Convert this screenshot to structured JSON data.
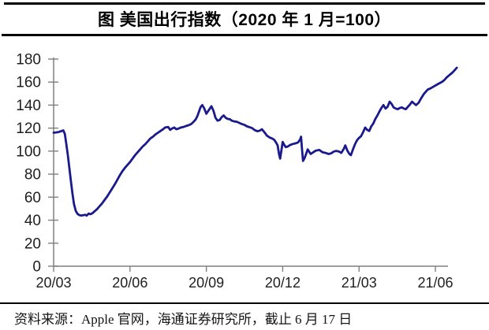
{
  "header": {
    "title": "图 美国出行指数（2020 年 1 月=100）"
  },
  "footer": {
    "source": "资料来源：Apple 官网，海通证券研究所，截止 6 月 17 日"
  },
  "colors": {
    "line": "#1a1a8c",
    "axis": "#808080",
    "tick_label": "#1f1f1f",
    "rule": "#000000",
    "background": "#ffffff"
  },
  "chart_data": {
    "type": "line",
    "title": "美国出行指数（2020年1月=100）",
    "xlabel": "",
    "ylabel": "",
    "x_axis": {
      "unit": "months since 2020-03",
      "tick_positions": [
        0,
        3,
        6,
        9,
        12,
        15
      ],
      "tick_labels": [
        "20/03",
        "20/06",
        "20/09",
        "20/12",
        "21/03",
        "21/06"
      ],
      "range": [
        0,
        15.95
      ]
    },
    "y_axis": {
      "ticks": [
        0,
        20,
        40,
        60,
        80,
        100,
        120,
        140,
        160,
        180
      ],
      "range": [
        0,
        180
      ]
    },
    "grid": "off",
    "legend": "none",
    "series": [
      {
        "name": "美国出行指数",
        "points": [
          [
            0,
            116
          ],
          [
            0.1,
            116.3
          ],
          [
            0.2,
            116.6
          ],
          [
            0.3,
            117.4
          ],
          [
            0.38,
            118
          ],
          [
            0.44,
            115
          ],
          [
            0.5,
            106
          ],
          [
            0.56,
            96
          ],
          [
            0.62,
            85
          ],
          [
            0.68,
            74
          ],
          [
            0.74,
            63
          ],
          [
            0.8,
            54
          ],
          [
            0.87,
            48
          ],
          [
            0.94,
            45.5
          ],
          [
            1.0,
            44.5
          ],
          [
            1.08,
            44
          ],
          [
            1.16,
            44.3
          ],
          [
            1.24,
            44.6
          ],
          [
            1.3,
            44
          ],
          [
            1.38,
            45.8
          ],
          [
            1.44,
            45.2
          ],
          [
            1.52,
            46
          ],
          [
            1.6,
            47.5
          ],
          [
            1.7,
            49.5
          ],
          [
            1.8,
            52
          ],
          [
            1.9,
            54.5
          ],
          [
            2.0,
            57.5
          ],
          [
            2.1,
            60.5
          ],
          [
            2.2,
            64
          ],
          [
            2.3,
            67.5
          ],
          [
            2.4,
            71
          ],
          [
            2.5,
            75
          ],
          [
            2.6,
            79
          ],
          [
            2.7,
            82.5
          ],
          [
            2.8,
            85.5
          ],
          [
            2.9,
            88
          ],
          [
            3.0,
            90.5
          ],
          [
            3.1,
            93.5
          ],
          [
            3.2,
            96.5
          ],
          [
            3.3,
            99
          ],
          [
            3.4,
            101.5
          ],
          [
            3.5,
            104
          ],
          [
            3.6,
            106
          ],
          [
            3.7,
            108.5
          ],
          [
            3.8,
            111
          ],
          [
            3.9,
            112.5
          ],
          [
            4.0,
            114.5
          ],
          [
            4.1,
            116
          ],
          [
            4.2,
            117.5
          ],
          [
            4.3,
            119
          ],
          [
            4.38,
            120.5
          ],
          [
            4.5,
            121
          ],
          [
            4.58,
            118.5
          ],
          [
            4.66,
            119.8
          ],
          [
            4.74,
            120.5
          ],
          [
            4.82,
            119
          ],
          [
            4.9,
            119.6
          ],
          [
            5.0,
            120.5
          ],
          [
            5.1,
            121
          ],
          [
            5.2,
            121.8
          ],
          [
            5.3,
            122.5
          ],
          [
            5.4,
            123.5
          ],
          [
            5.5,
            125.5
          ],
          [
            5.58,
            127.5
          ],
          [
            5.65,
            130.5
          ],
          [
            5.72,
            135
          ],
          [
            5.78,
            138.5
          ],
          [
            5.84,
            140
          ],
          [
            5.92,
            137
          ],
          [
            6.0,
            132.5
          ],
          [
            6.06,
            134.5
          ],
          [
            6.14,
            137
          ],
          [
            6.2,
            139
          ],
          [
            6.28,
            135
          ],
          [
            6.36,
            129
          ],
          [
            6.44,
            126.5
          ],
          [
            6.52,
            127
          ],
          [
            6.6,
            129.5
          ],
          [
            6.68,
            131
          ],
          [
            6.76,
            129
          ],
          [
            6.84,
            128
          ],
          [
            6.92,
            127.8
          ],
          [
            7.0,
            126.5
          ],
          [
            7.1,
            125.8
          ],
          [
            7.2,
            125.5
          ],
          [
            7.3,
            124.5
          ],
          [
            7.4,
            123.5
          ],
          [
            7.5,
            122.8
          ],
          [
            7.6,
            121.5
          ],
          [
            7.7,
            120.8
          ],
          [
            7.8,
            120
          ],
          [
            7.9,
            118.3
          ],
          [
            8.0,
            117.3
          ],
          [
            8.1,
            117.8
          ],
          [
            8.18,
            119
          ],
          [
            8.28,
            116.5
          ],
          [
            8.38,
            113.5
          ],
          [
            8.48,
            112
          ],
          [
            8.58,
            111
          ],
          [
            8.66,
            110
          ],
          [
            8.74,
            107.5
          ],
          [
            8.8,
            105
          ],
          [
            8.86,
            97
          ],
          [
            8.9,
            93.5
          ],
          [
            8.96,
            102
          ],
          [
            9.0,
            108
          ],
          [
            9.06,
            105.5
          ],
          [
            9.12,
            103.5
          ],
          [
            9.2,
            104
          ],
          [
            9.3,
            105.5
          ],
          [
            9.4,
            106.2
          ],
          [
            9.5,
            106.8
          ],
          [
            9.6,
            107.5
          ],
          [
            9.68,
            110
          ],
          [
            9.72,
            112.5
          ],
          [
            9.76,
            101
          ],
          [
            9.8,
            91.5
          ],
          [
            9.86,
            94
          ],
          [
            9.92,
            97.5
          ],
          [
            9.98,
            101.5
          ],
          [
            10.04,
            99.5
          ],
          [
            10.1,
            97.5
          ],
          [
            10.2,
            99
          ],
          [
            10.3,
            100.5
          ],
          [
            10.44,
            101
          ],
          [
            10.56,
            99
          ],
          [
            10.68,
            98.5
          ],
          [
            10.8,
            97.5
          ],
          [
            10.9,
            98
          ],
          [
            11.0,
            99.5
          ],
          [
            11.1,
            100.2
          ],
          [
            11.2,
            99.8
          ],
          [
            11.3,
            98.5
          ],
          [
            11.4,
            102
          ],
          [
            11.46,
            105
          ],
          [
            11.54,
            100.5
          ],
          [
            11.62,
            97.5
          ],
          [
            11.68,
            96.5
          ],
          [
            11.76,
            101.5
          ],
          [
            11.84,
            106
          ],
          [
            11.92,
            109.5
          ],
          [
            12.0,
            111.5
          ],
          [
            12.08,
            113
          ],
          [
            12.16,
            116.5
          ],
          [
            12.24,
            120.5
          ],
          [
            12.32,
            118.5
          ],
          [
            12.4,
            117.5
          ],
          [
            12.48,
            121.5
          ],
          [
            12.56,
            124
          ],
          [
            12.64,
            128
          ],
          [
            12.72,
            131
          ],
          [
            12.8,
            134.5
          ],
          [
            12.88,
            137.5
          ],
          [
            12.96,
            140
          ],
          [
            13.04,
            137
          ],
          [
            13.12,
            138.5
          ],
          [
            13.2,
            143
          ],
          [
            13.28,
            141
          ],
          [
            13.36,
            138
          ],
          [
            13.44,
            137
          ],
          [
            13.52,
            136.5
          ],
          [
            13.6,
            137.5
          ],
          [
            13.68,
            138
          ],
          [
            13.76,
            137
          ],
          [
            13.84,
            136.5
          ],
          [
            13.92,
            138.5
          ],
          [
            14.0,
            140.5
          ],
          [
            14.08,
            143
          ],
          [
            14.16,
            141.5
          ],
          [
            14.24,
            140
          ],
          [
            14.34,
            142
          ],
          [
            14.44,
            146
          ],
          [
            14.54,
            149.5
          ],
          [
            14.62,
            151.5
          ],
          [
            14.7,
            153.5
          ],
          [
            14.8,
            154.5
          ],
          [
            14.88,
            155.5
          ],
          [
            14.96,
            156.5
          ],
          [
            15.04,
            157.5
          ],
          [
            15.12,
            158.5
          ],
          [
            15.2,
            159.5
          ],
          [
            15.28,
            160.5
          ],
          [
            15.36,
            162
          ],
          [
            15.44,
            164
          ],
          [
            15.52,
            165.5
          ],
          [
            15.6,
            167
          ],
          [
            15.68,
            168.5
          ],
          [
            15.76,
            170.5
          ],
          [
            15.84,
            172.5
          ]
        ]
      }
    ]
  }
}
